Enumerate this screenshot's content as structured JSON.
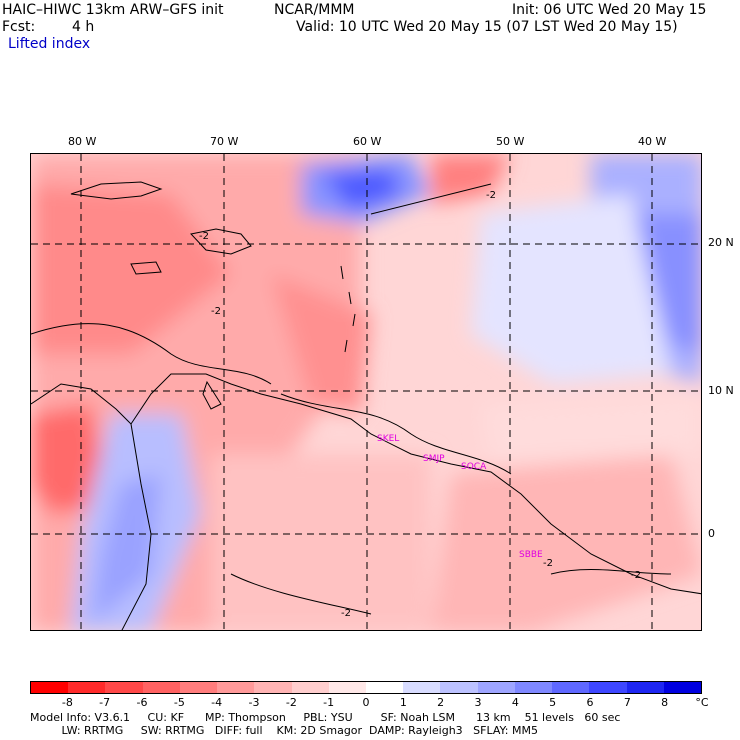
{
  "header": {
    "title": "HAIC–HIWC 13km ARW–GFS init",
    "org": "NCAR/MMM",
    "init": "Init: 06 UTC Wed 20 May 15",
    "fcst_label": "Fcst:",
    "fcst_value": "4 h",
    "valid": "Valid: 10 UTC Wed 20 May 15 (07 LST Wed 20 May 15)",
    "field": "Lifted index"
  },
  "map": {
    "lon_labels": [
      "80 W",
      "70 W",
      "60 W",
      "50 W",
      "40 W"
    ],
    "lat_labels": [
      "20 N",
      "10 N",
      "0"
    ],
    "stations": [
      "SKEL",
      "SMJP",
      "SOCA",
      "SBBE"
    ],
    "contour_label": "-2"
  },
  "colorbar": {
    "ticks": [
      "-8",
      "-7",
      "-6",
      "-5",
      "-4",
      "-3",
      "-2",
      "-1",
      "0",
      "1",
      "2",
      "3",
      "4",
      "5",
      "6",
      "7",
      "8"
    ],
    "unit": "°C",
    "colors": [
      "#ff0000",
      "#ff2a2a",
      "#ff4848",
      "#ff6262",
      "#ff7d7d",
      "#ff9a9a",
      "#ffb4b4",
      "#ffcece",
      "#ffe8e8",
      "#ffffff",
      "#d8dcff",
      "#bcc2ff",
      "#9ea5ff",
      "#7f88ff",
      "#5f68ff",
      "#3e47ff",
      "#1e26f2",
      "#0000e0"
    ]
  },
  "model_info": {
    "line1": "Model Info: V3.6.1     CU: KF      MP: Thompson     PBL: YSU        SF: Noah LSM      13 km    51 levels   60 sec",
    "line2": "         LW: RRTMG     SW: RRTMG   DIFF: full    KM: 2D Smagor  DAMP: Rayleigh3   SFLAY: MM5"
  }
}
